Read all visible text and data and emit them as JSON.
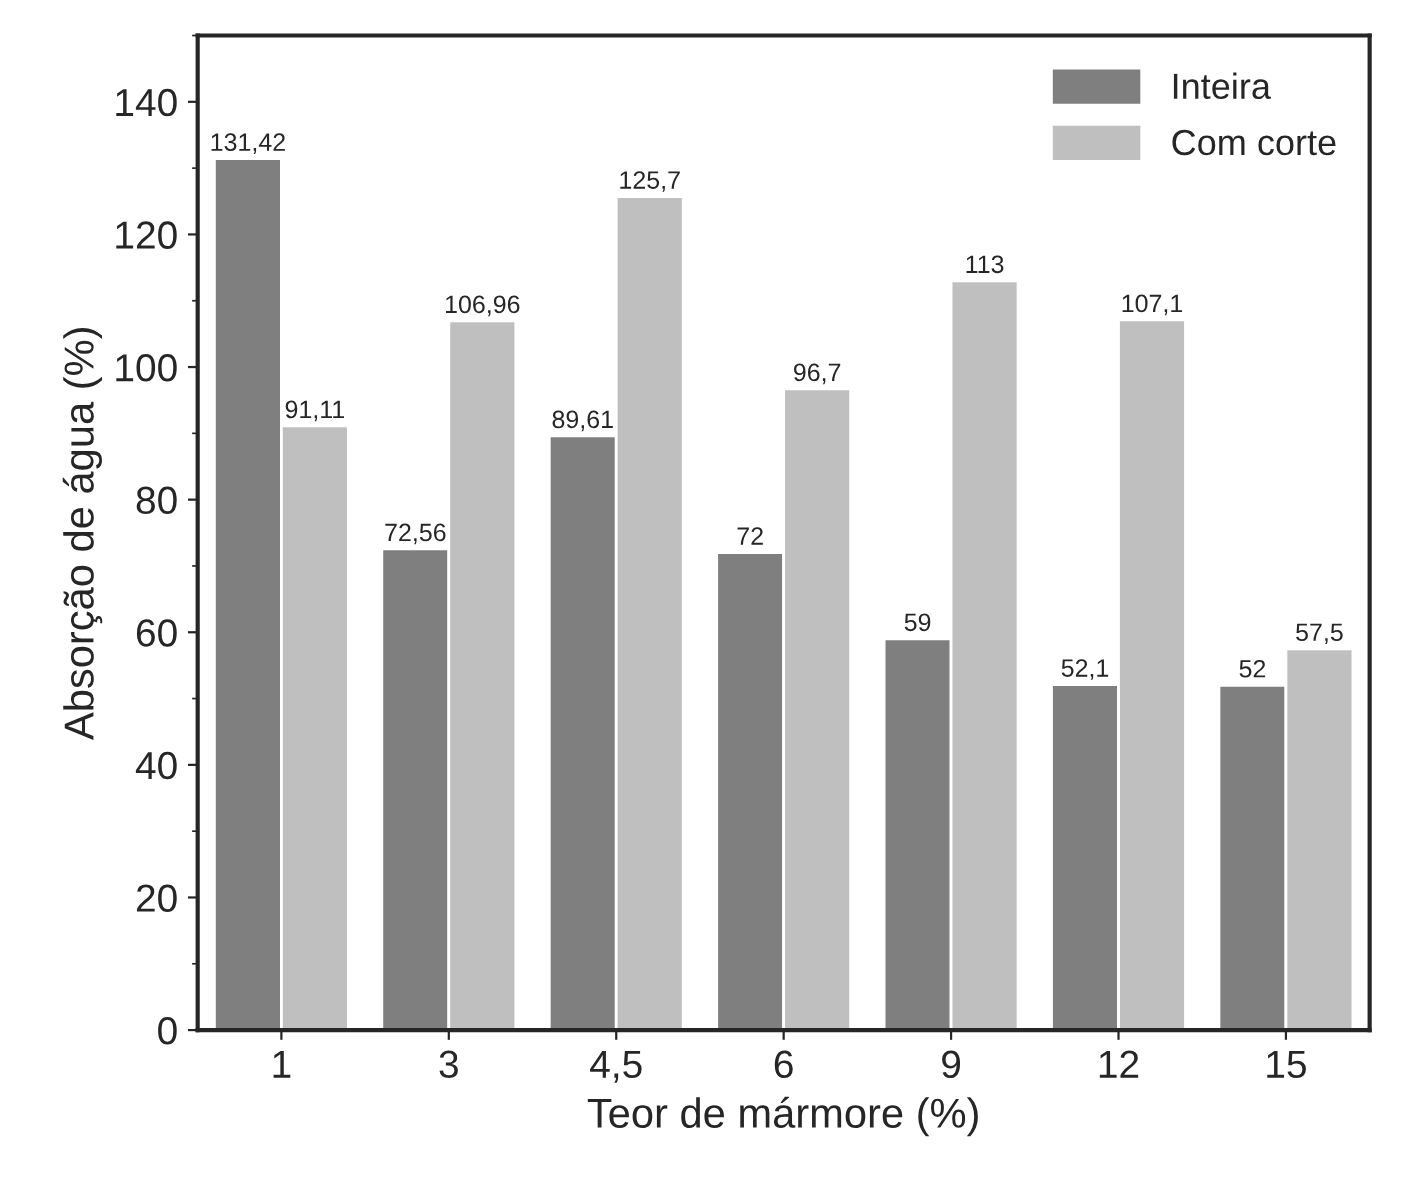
{
  "chart_data": {
    "type": "bar",
    "xlabel": "Teor de mármore (%)",
    "ylabel": "Absorção de água (%)",
    "categories": [
      "1",
      "3",
      "4,5",
      "6",
      "9",
      "12",
      "15"
    ],
    "series": [
      {
        "name": "Inteira",
        "color": "#7f7f7f",
        "values": [
          131.42,
          72.56,
          89.61,
          72,
          59,
          52.1,
          52
        ],
        "value_labels": [
          "131,42",
          "72,56",
          "89,61",
          "72",
          "59",
          "52,1",
          "52"
        ]
      },
      {
        "name": "Com corte",
        "color": "#bfbfbf",
        "values": [
          91.11,
          106.96,
          125.7,
          96.7,
          113,
          107.1,
          57.5
        ],
        "value_labels": [
          "91,11",
          "106,96",
          "125,7",
          "96,7",
          "113",
          "107,1",
          "57,5"
        ]
      }
    ],
    "ylim": [
      0,
      150
    ],
    "yticks": [
      0,
      20,
      40,
      60,
      80,
      100,
      120,
      140
    ],
    "grid": false,
    "legend": "top right"
  }
}
